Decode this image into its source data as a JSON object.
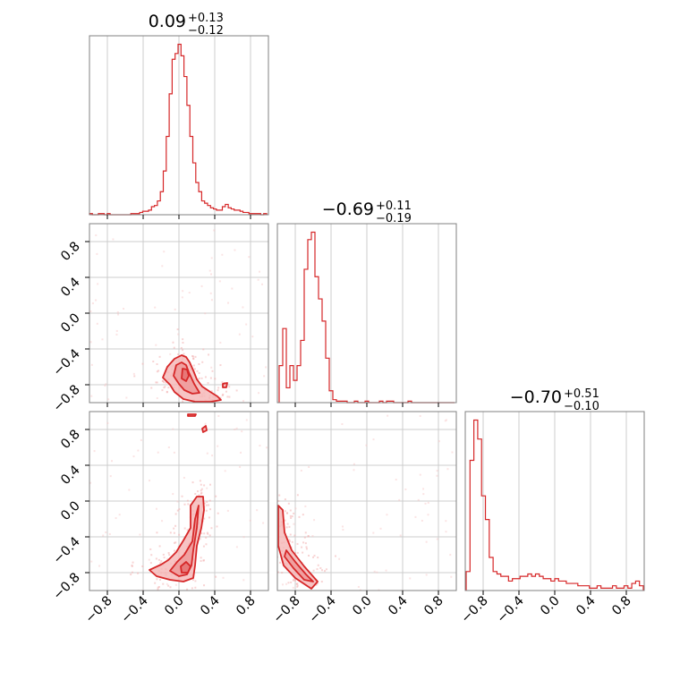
{
  "chart_data": {
    "type": "corner",
    "param_count": 3,
    "axis_range": [
      -1.0,
      1.0
    ],
    "tick_values": [
      -0.8,
      -0.4,
      0.0,
      0.4,
      0.8
    ],
    "tick_labels": [
      "−0.8",
      "−0.4",
      "0.0",
      "0.4",
      "0.8"
    ],
    "grid": true,
    "colors": {
      "line": "#d62728",
      "fill": "#f5b5b5",
      "fill_dark": "#e67373",
      "axes": "#808080",
      "grid": "#cccccc"
    },
    "titles": [
      {
        "value": "0.09",
        "upper": "+0.13",
        "lower": "−0.12"
      },
      {
        "value": "−0.69",
        "upper": "+0.11",
        "lower": "−0.19"
      },
      {
        "value": "−0.70",
        "upper": "+0.51",
        "lower": "−0.10"
      }
    ],
    "histograms": [
      {
        "param": 0,
        "bin_edges": [
          -1.0,
          0.98
        ],
        "counts": [
          1,
          0,
          0,
          1,
          1,
          0,
          1,
          0,
          0,
          0,
          0,
          0,
          0,
          0,
          1,
          1,
          1,
          2,
          3,
          3,
          4,
          7,
          8,
          12,
          20,
          38,
          68,
          105,
          135,
          140,
          148,
          138,
          120,
          95,
          68,
          45,
          28,
          20,
          12,
          10,
          8,
          6,
          5,
          4,
          4,
          7,
          9,
          6,
          5,
          4,
          4,
          3,
          2,
          2,
          1,
          1,
          1,
          1,
          0,
          1
        ]
      },
      {
        "param": 1,
        "bin_edges": [
          -0.98,
          0.98
        ],
        "counts": [
          25,
          50,
          10,
          25,
          15,
          25,
          42,
          90,
          110,
          115,
          85,
          70,
          55,
          30,
          8,
          2,
          1,
          1,
          1,
          0,
          0,
          1,
          0,
          0,
          1,
          0,
          0,
          0,
          1,
          0,
          1,
          1,
          0,
          0,
          0,
          0,
          1,
          0,
          0,
          0,
          0,
          0,
          0,
          0,
          0,
          0,
          0,
          0,
          0
        ]
      },
      {
        "param": 2,
        "bin_edges": [
          -0.99,
          0.99
        ],
        "counts": [
          8,
          55,
          72,
          64,
          40,
          30,
          14,
          8,
          7,
          6,
          6,
          4,
          5,
          5,
          6,
          6,
          7,
          6,
          7,
          6,
          5,
          5,
          4,
          5,
          4,
          4,
          3,
          3,
          3,
          2,
          2,
          2,
          1,
          1,
          2,
          1,
          1,
          1,
          2,
          1,
          1,
          2,
          1,
          3,
          4,
          2
        ]
      }
    ],
    "pairs": [
      {
        "x_param": 0,
        "y_param": 1,
        "contours": [
          {
            "level": "outer",
            "points": [
              [
                -0.18,
                -0.72
              ],
              [
                -0.13,
                -0.6
              ],
              [
                -0.05,
                -0.51
              ],
              [
                0.03,
                -0.47
              ],
              [
                0.08,
                -0.49
              ],
              [
                0.12,
                -0.55
              ],
              [
                0.16,
                -0.64
              ],
              [
                0.2,
                -0.74
              ],
              [
                0.26,
                -0.82
              ],
              [
                0.35,
                -0.88
              ],
              [
                0.43,
                -0.93
              ],
              [
                0.47,
                -0.97
              ],
              [
                0.36,
                -0.99
              ],
              [
                0.18,
                -0.99
              ],
              [
                0.05,
                -0.96
              ],
              [
                -0.05,
                -0.88
              ],
              [
                -0.1,
                -0.8
              ]
            ]
          },
          {
            "level": "inner",
            "points": [
              [
                -0.06,
                -0.7
              ],
              [
                -0.03,
                -0.58
              ],
              [
                0.03,
                -0.55
              ],
              [
                0.08,
                -0.58
              ],
              [
                0.11,
                -0.66
              ],
              [
                0.17,
                -0.79
              ],
              [
                0.23,
                -0.89
              ],
              [
                0.15,
                -0.9
              ],
              [
                0.06,
                -0.86
              ],
              [
                0.0,
                -0.79
              ]
            ]
          },
          {
            "level": "core",
            "points": [
              [
                0.04,
                -0.62
              ],
              [
                0.09,
                -0.63
              ],
              [
                0.11,
                -0.7
              ],
              [
                0.08,
                -0.76
              ],
              [
                0.03,
                -0.73
              ]
            ]
          },
          {
            "level": "island",
            "points": [
              [
                0.49,
                -0.79
              ],
              [
                0.54,
                -0.78
              ],
              [
                0.53,
                -0.83
              ],
              [
                0.49,
                -0.83
              ]
            ]
          }
        ]
      },
      {
        "x_param": 0,
        "y_param": 2,
        "contours": [
          {
            "level": "outer",
            "points": [
              [
                -0.33,
                -0.77
              ],
              [
                -0.2,
                -0.71
              ],
              [
                -0.12,
                -0.66
              ],
              [
                -0.03,
                -0.57
              ],
              [
                0.05,
                -0.44
              ],
              [
                0.13,
                -0.3
              ],
              [
                0.13,
                -0.05
              ],
              [
                0.2,
                0.05
              ],
              [
                0.27,
                0.05
              ],
              [
                0.28,
                -0.1
              ],
              [
                0.25,
                -0.3
              ],
              [
                0.2,
                -0.5
              ],
              [
                0.18,
                -0.72
              ],
              [
                0.16,
                -0.86
              ],
              [
                0.05,
                -0.9
              ],
              [
                -0.1,
                -0.88
              ],
              [
                -0.25,
                -0.84
              ]
            ]
          },
          {
            "level": "inner",
            "points": [
              [
                -0.1,
                -0.78
              ],
              [
                -0.02,
                -0.68
              ],
              [
                0.06,
                -0.6
              ],
              [
                0.15,
                -0.45
              ],
              [
                0.18,
                -0.2
              ],
              [
                0.22,
                -0.05
              ],
              [
                0.2,
                -0.3
              ],
              [
                0.16,
                -0.55
              ],
              [
                0.14,
                -0.72
              ],
              [
                0.09,
                -0.82
              ],
              [
                0.0,
                -0.84
              ]
            ]
          },
          {
            "level": "core",
            "points": [
              [
                0.02,
                -0.73
              ],
              [
                0.08,
                -0.68
              ],
              [
                0.13,
                -0.73
              ],
              [
                0.1,
                -0.8
              ],
              [
                0.03,
                -0.8
              ]
            ]
          },
          {
            "level": "island",
            "points": [
              [
                0.26,
                0.81
              ],
              [
                0.3,
                0.84
              ],
              [
                0.31,
                0.79
              ],
              [
                0.27,
                0.77
              ]
            ]
          },
          {
            "level": "island",
            "points": [
              [
                0.1,
                0.97
              ],
              [
                0.19,
                0.97
              ],
              [
                0.18,
                0.95
              ],
              [
                0.1,
                0.95
              ]
            ]
          }
        ]
      },
      {
        "x_param": 1,
        "y_param": 2,
        "contours": [
          {
            "level": "outer",
            "points": [
              [
                -0.99,
                -0.05
              ],
              [
                -0.94,
                -0.1
              ],
              [
                -0.92,
                -0.35
              ],
              [
                -0.84,
                -0.55
              ],
              [
                -0.7,
                -0.73
              ],
              [
                -0.55,
                -0.9
              ],
              [
                -0.62,
                -0.98
              ],
              [
                -0.8,
                -0.86
              ],
              [
                -0.93,
                -0.72
              ],
              [
                -0.99,
                -0.5
              ]
            ]
          },
          {
            "level": "inner",
            "points": [
              [
                -0.9,
                -0.55
              ],
              [
                -0.8,
                -0.68
              ],
              [
                -0.68,
                -0.82
              ],
              [
                -0.6,
                -0.9
              ],
              [
                -0.7,
                -0.88
              ],
              [
                -0.82,
                -0.75
              ],
              [
                -0.92,
                -0.62
              ]
            ]
          }
        ]
      }
    ]
  }
}
